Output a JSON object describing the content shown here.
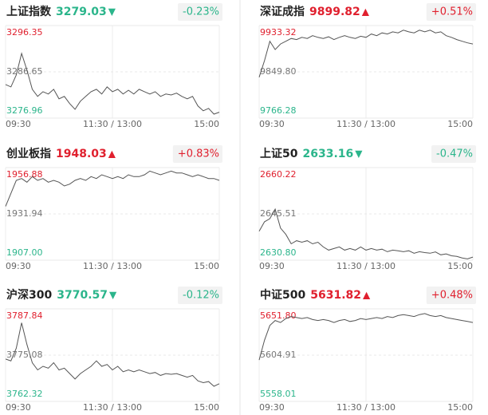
{
  "chart_data": [
    {
      "type": "line",
      "title": "上证指数",
      "price": "3279.03",
      "arrow": "▼",
      "change": "-0.23%",
      "color": "#2bb58b",
      "line_color": "#555555",
      "xlim": [
        0,
        240
      ],
      "xticks": [
        {
          "value": 0,
          "label": "09:30"
        },
        {
          "value": 120,
          "label": "11:30 / 13:00"
        },
        {
          "value": 240,
          "label": "15:00"
        }
      ],
      "ylim": [
        3276.96,
        3296.35
      ],
      "yticks": [
        {
          "value": 3276.96,
          "label": "3276.96"
        },
        {
          "value": 3286.65,
          "label": "3286.65"
        },
        {
          "value": 3296.35,
          "label": "3296.35"
        }
      ],
      "x": [
        0,
        6,
        12,
        18,
        24,
        30,
        36,
        42,
        48,
        54,
        60,
        66,
        72,
        78,
        84,
        90,
        96,
        102,
        108,
        114,
        120,
        126,
        132,
        138,
        144,
        150,
        156,
        162,
        168,
        174,
        180,
        186,
        192,
        198,
        204,
        210,
        216,
        222,
        228,
        234,
        240
      ],
      "values": [
        3284.0,
        3283.5,
        3286.0,
        3290.5,
        3287.0,
        3283.0,
        3281.5,
        3282.5,
        3282.0,
        3283.0,
        3281.0,
        3281.5,
        3280.0,
        3278.8,
        3280.5,
        3281.5,
        3282.5,
        3283.0,
        3282.0,
        3283.5,
        3282.5,
        3283.0,
        3282.0,
        3282.8,
        3282.0,
        3283.0,
        3282.5,
        3282.0,
        3282.5,
        3281.5,
        3282.0,
        3281.8,
        3282.2,
        3281.5,
        3281.0,
        3281.5,
        3279.5,
        3278.5,
        3279.0,
        3277.8,
        3278.2
      ]
    },
    {
      "type": "line",
      "title": "深证成指",
      "price": "9899.82",
      "arrow": "▲",
      "change": "+0.51%",
      "color": "#e0202e",
      "line_color": "#555555",
      "xlim": [
        0,
        240
      ],
      "xticks": [
        {
          "value": 0,
          "label": "09:30"
        },
        {
          "value": 120,
          "label": "11:30 / 13:00"
        },
        {
          "value": 240,
          "label": "15:00"
        }
      ],
      "ylim": [
        9766.28,
        9933.32
      ],
      "yticks": [
        {
          "value": 9766.28,
          "label": "9766.28"
        },
        {
          "value": 9849.8,
          "label": "9849.80"
        },
        {
          "value": 9933.32,
          "label": "9933.32"
        }
      ],
      "x": [
        0,
        6,
        12,
        18,
        24,
        30,
        36,
        42,
        48,
        54,
        60,
        66,
        72,
        78,
        84,
        90,
        96,
        102,
        108,
        114,
        120,
        126,
        132,
        138,
        144,
        150,
        156,
        162,
        168,
        174,
        180,
        186,
        192,
        198,
        204,
        210,
        216,
        222,
        228,
        234,
        240
      ],
      "values": [
        9840,
        9870,
        9905,
        9890,
        9900,
        9905,
        9910,
        9908,
        9912,
        9910,
        9915,
        9912,
        9910,
        9913,
        9908,
        9912,
        9915,
        9912,
        9910,
        9914,
        9912,
        9918,
        9915,
        9920,
        9918,
        9922,
        9920,
        9925,
        9922,
        9920,
        9925,
        9922,
        9925,
        9920,
        9922,
        9915,
        9912,
        9908,
        9905,
        9902,
        9900
      ]
    },
    {
      "type": "line",
      "title": "创业板指",
      "price": "1948.03",
      "arrow": "▲",
      "change": "+0.83%",
      "color": "#e0202e",
      "line_color": "#555555",
      "xlim": [
        0,
        240
      ],
      "xticks": [
        {
          "value": 0,
          "label": "09:30"
        },
        {
          "value": 120,
          "label": "11:30 / 13:00"
        },
        {
          "value": 240,
          "label": "15:00"
        }
      ],
      "ylim": [
        1907.0,
        1956.88
      ],
      "yticks": [
        {
          "value": 1907.0,
          "label": "1907.00"
        },
        {
          "value": 1931.94,
          "label": "1931.94"
        },
        {
          "value": 1956.88,
          "label": "1956.88"
        }
      ],
      "x": [
        0,
        6,
        12,
        18,
        24,
        30,
        36,
        42,
        48,
        54,
        60,
        66,
        72,
        78,
        84,
        90,
        96,
        102,
        108,
        114,
        120,
        126,
        132,
        138,
        144,
        150,
        156,
        162,
        168,
        174,
        180,
        186,
        192,
        198,
        204,
        210,
        216,
        222,
        228,
        234,
        240
      ],
      "values": [
        1936,
        1943,
        1950,
        1951,
        1949,
        1952,
        1950,
        1951,
        1949,
        1950,
        1949,
        1947,
        1948,
        1950,
        1951,
        1950,
        1952,
        1951,
        1953,
        1952,
        1951,
        1952,
        1951,
        1953,
        1952,
        1952,
        1953,
        1955,
        1954,
        1953,
        1954,
        1955,
        1954,
        1954,
        1953,
        1952,
        1953,
        1952,
        1951,
        1951,
        1950
      ]
    },
    {
      "type": "line",
      "title": "上证50",
      "price": "2633.16",
      "arrow": "▼",
      "change": "-0.47%",
      "color": "#2bb58b",
      "line_color": "#555555",
      "xlim": [
        0,
        240
      ],
      "xticks": [
        {
          "value": 0,
          "label": "09:30"
        },
        {
          "value": 120,
          "label": "11:30 / 13:00"
        },
        {
          "value": 240,
          "label": "15:00"
        }
      ],
      "ylim": [
        2630.8,
        2660.22
      ],
      "yticks": [
        {
          "value": 2630.8,
          "label": "2630.80"
        },
        {
          "value": 2645.51,
          "label": "2645.51"
        },
        {
          "value": 2660.22,
          "label": "2660.22"
        }
      ],
      "x": [
        0,
        6,
        12,
        18,
        24,
        30,
        36,
        42,
        48,
        54,
        60,
        66,
        72,
        78,
        84,
        90,
        96,
        102,
        108,
        114,
        120,
        126,
        132,
        138,
        144,
        150,
        156,
        162,
        168,
        174,
        180,
        186,
        192,
        198,
        204,
        210,
        216,
        222,
        228,
        234,
        240
      ],
      "values": [
        2640,
        2643,
        2644,
        2647,
        2641,
        2639,
        2636,
        2637,
        2636.5,
        2637,
        2636,
        2636.5,
        2635,
        2634,
        2634.5,
        2635,
        2634,
        2634.5,
        2634,
        2635,
        2634,
        2634.5,
        2634,
        2634.3,
        2633.5,
        2634,
        2633.8,
        2633.5,
        2633.8,
        2633,
        2633.5,
        2633.2,
        2633,
        2633.4,
        2632.5,
        2632.8,
        2632.2,
        2632,
        2631.5,
        2631.2,
        2631.8
      ]
    },
    {
      "type": "line",
      "title": "沪深300",
      "price": "3770.57",
      "arrow": "▼",
      "change": "-0.12%",
      "color": "#2bb58b",
      "line_color": "#555555",
      "xlim": [
        0,
        240
      ],
      "xticks": [
        {
          "value": 0,
          "label": "09:30"
        },
        {
          "value": 120,
          "label": "11:30 / 13:00"
        },
        {
          "value": 240,
          "label": "15:00"
        }
      ],
      "ylim": [
        3762.32,
        3787.84
      ],
      "yticks": [
        {
          "value": 3762.32,
          "label": "3762.32"
        },
        {
          "value": 3775.08,
          "label": "3775.08"
        },
        {
          "value": 3787.84,
          "label": "3787.84"
        }
      ],
      "x": [
        0,
        6,
        12,
        18,
        24,
        30,
        36,
        42,
        48,
        54,
        60,
        66,
        72,
        78,
        84,
        90,
        96,
        102,
        108,
        114,
        120,
        126,
        132,
        138,
        144,
        150,
        156,
        162,
        168,
        174,
        180,
        186,
        192,
        198,
        204,
        210,
        216,
        222,
        228,
        234,
        240
      ],
      "values": [
        3774,
        3773.5,
        3777,
        3784,
        3778,
        3773,
        3771,
        3772,
        3771.5,
        3773,
        3771,
        3771.5,
        3770,
        3768.5,
        3770,
        3771,
        3772,
        3773.5,
        3772,
        3772.5,
        3771,
        3772,
        3770.5,
        3771,
        3770.5,
        3771,
        3770.5,
        3770,
        3770.3,
        3769.5,
        3770,
        3769.8,
        3770,
        3769.5,
        3769,
        3769.5,
        3768,
        3767.5,
        3767.8,
        3766.5,
        3767.2
      ]
    },
    {
      "type": "line",
      "title": "中证500",
      "price": "5631.82",
      "arrow": "▲",
      "change": "+0.48%",
      "color": "#e0202e",
      "line_color": "#555555",
      "xlim": [
        0,
        240
      ],
      "xticks": [
        {
          "value": 0,
          "label": "09:30"
        },
        {
          "value": 120,
          "label": "11:30 / 13:00"
        },
        {
          "value": 240,
          "label": "15:00"
        }
      ],
      "ylim": [
        5558.01,
        5651.8
      ],
      "yticks": [
        {
          "value": 5558.01,
          "label": "5558.01"
        },
        {
          "value": 5604.91,
          "label": "5604.91"
        },
        {
          "value": 5651.8,
          "label": "5651.80"
        }
      ],
      "x": [
        0,
        6,
        12,
        18,
        24,
        30,
        36,
        42,
        48,
        54,
        60,
        66,
        72,
        78,
        84,
        90,
        96,
        102,
        108,
        114,
        120,
        126,
        132,
        138,
        144,
        150,
        156,
        162,
        168,
        174,
        180,
        186,
        192,
        198,
        204,
        210,
        216,
        222,
        228,
        234,
        240
      ],
      "values": [
        5600,
        5620,
        5635,
        5640,
        5638,
        5642,
        5644,
        5643,
        5642,
        5643,
        5641,
        5640,
        5641,
        5640,
        5638,
        5640,
        5641,
        5639,
        5640,
        5642,
        5641,
        5642,
        5643,
        5642,
        5644,
        5643,
        5645,
        5646,
        5645,
        5644,
        5646,
        5647,
        5645,
        5644,
        5645,
        5643,
        5642,
        5641,
        5640,
        5639,
        5638
      ]
    }
  ]
}
